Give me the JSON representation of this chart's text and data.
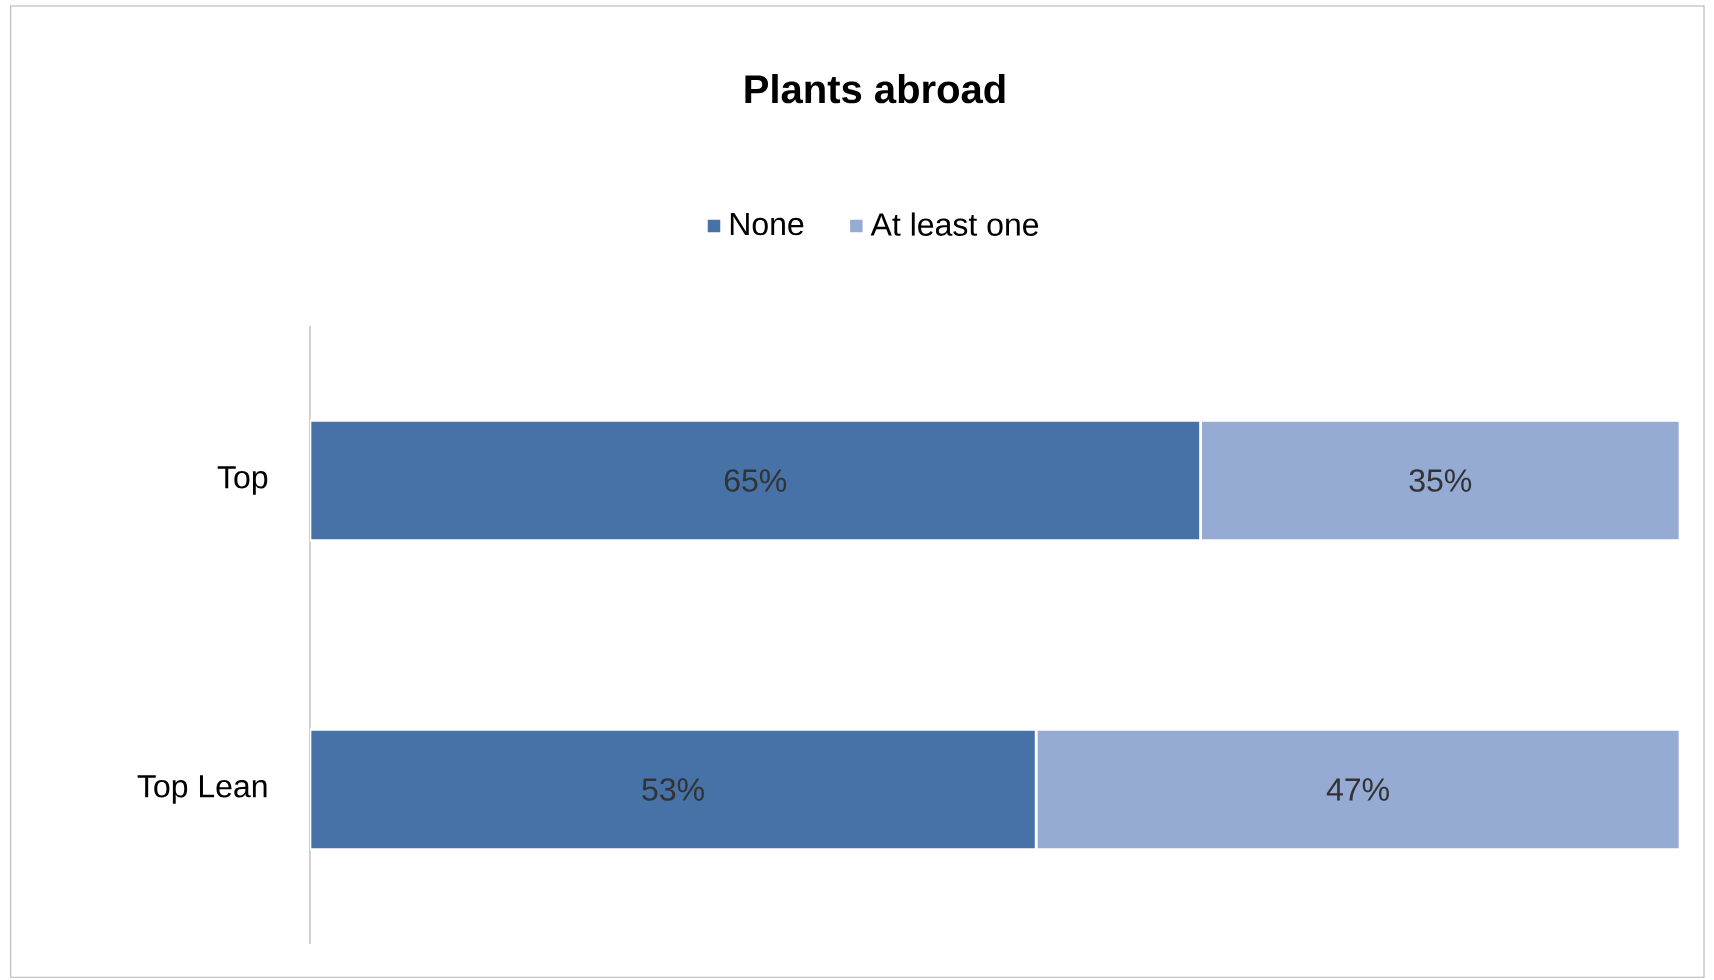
{
  "chart_data": {
    "type": "bar",
    "title": "Plants abroad",
    "orientation": "horizontal",
    "stacked": true,
    "categories": [
      "Top",
      "Top Lean"
    ],
    "series": [
      {
        "name": "None",
        "color": "#4672a8",
        "values": [
          65,
          53
        ],
        "value_labels": [
          "65%",
          "53%"
        ]
      },
      {
        "name": "At least one",
        "color": "#95abd3",
        "values": [
          35,
          47
        ],
        "value_labels": [
          "35%",
          "47%"
        ]
      }
    ],
    "xlim": [
      0,
      100
    ],
    "tick_labels": "y",
    "legend": "top"
  }
}
